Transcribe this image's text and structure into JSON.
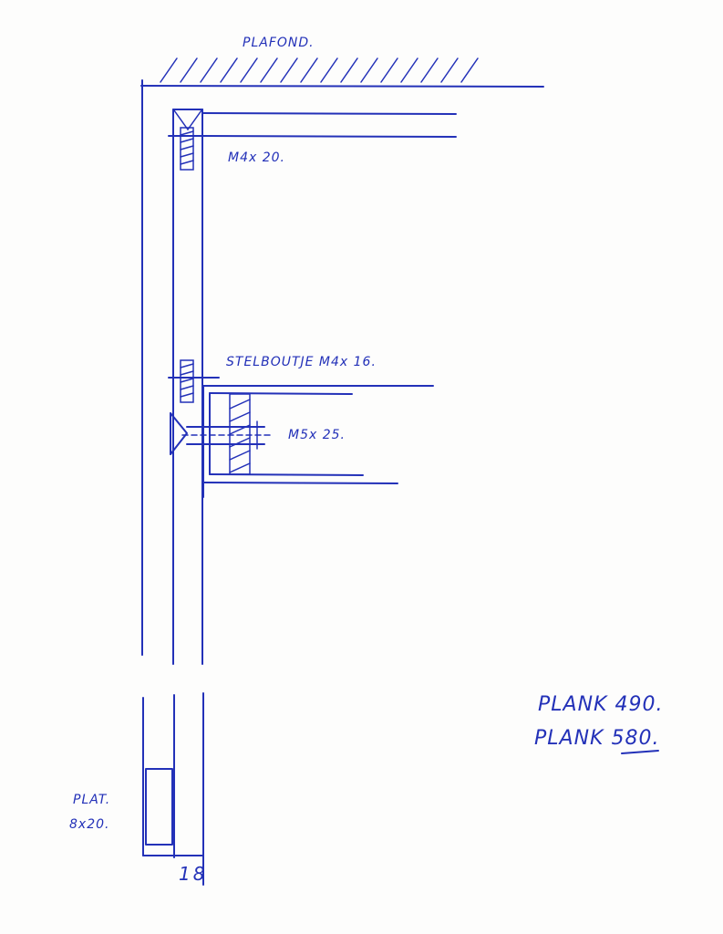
{
  "labels": {
    "ceiling": "PLAFOND.",
    "screw_top": "M4x 20.",
    "set_bolt": "STELBOUTJE M4x 16.",
    "bolt": "M5x 25.",
    "plank_1": "PLANK 490.",
    "plank_2": "PLANK 580.",
    "flat_bar_line1": "PLAT.",
    "flat_bar_line2": "8x20.",
    "dimension": "18"
  }
}
